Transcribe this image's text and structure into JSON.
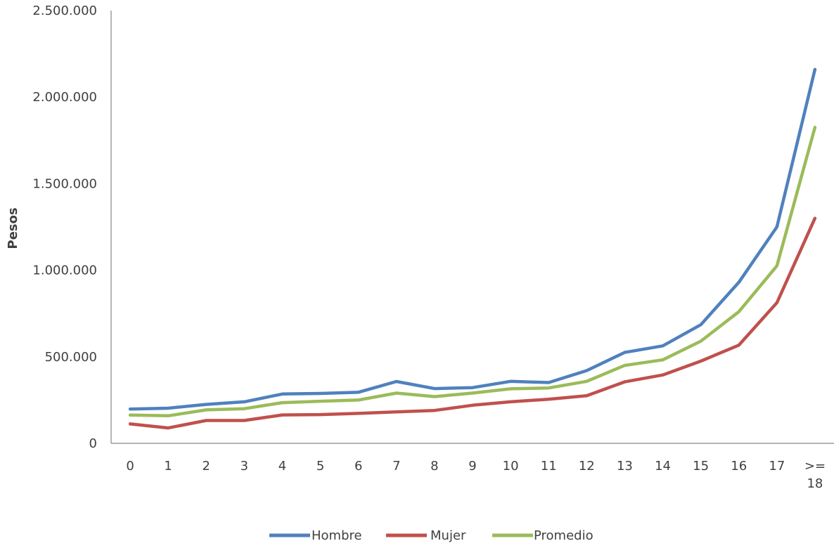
{
  "chart_data": {
    "type": "line",
    "title": "",
    "xlabel": "",
    "ylabel": "Pesos",
    "ylim": [
      0,
      2500000
    ],
    "yticks": [
      0,
      500000,
      1000000,
      1500000,
      2000000,
      2500000
    ],
    "ytick_labels": [
      "0",
      "500.000",
      "1.000.000",
      "1.500.000",
      "2.000.000",
      "2.500.000"
    ],
    "categories": [
      "0",
      "1",
      "2",
      "3",
      "4",
      "5",
      "6",
      "7",
      "8",
      "9",
      "10",
      "11",
      "12",
      "13",
      "14",
      "15",
      "16",
      "17",
      ">= 18"
    ],
    "category_lines": [
      [
        "0"
      ],
      [
        "1"
      ],
      [
        "2"
      ],
      [
        "3"
      ],
      [
        "4"
      ],
      [
        "5"
      ],
      [
        "6"
      ],
      [
        "7"
      ],
      [
        "8"
      ],
      [
        "9"
      ],
      [
        "10"
      ],
      [
        "11"
      ],
      [
        "12"
      ],
      [
        "13"
      ],
      [
        "14"
      ],
      [
        "15"
      ],
      [
        "16"
      ],
      [
        "17"
      ],
      [
        ">=",
        "18"
      ]
    ],
    "grid": false,
    "legend_position": "bottom",
    "series": [
      {
        "name": "Hombre",
        "color": "#4f81bd",
        "values": [
          198000,
          203000,
          225000,
          240000,
          285000,
          288000,
          295000,
          357000,
          316000,
          322000,
          358000,
          351000,
          420000,
          525000,
          563000,
          685000,
          930000,
          1250000,
          2160000
        ]
      },
      {
        "name": "Mujer",
        "color": "#c0504d",
        "values": [
          112000,
          89000,
          132000,
          132000,
          164000,
          166000,
          173000,
          182000,
          190000,
          220000,
          240000,
          255000,
          275000,
          355000,
          395000,
          475000,
          567000,
          812000,
          1300000
        ]
      },
      {
        "name": "Promedio",
        "color": "#9bbb59",
        "values": [
          163000,
          159000,
          193000,
          200000,
          235000,
          243000,
          250000,
          290000,
          270000,
          290000,
          315000,
          320000,
          358000,
          450000,
          482000,
          590000,
          760000,
          1025000,
          1825000
        ]
      }
    ]
  }
}
